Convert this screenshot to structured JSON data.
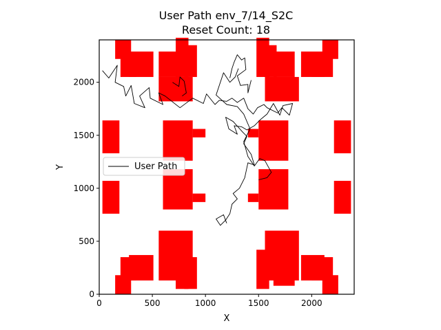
{
  "chart_data": {
    "type": "line",
    "title": "User Path env_7/14_S2C",
    "subtitle": "Reset Count: 18",
    "xlabel": "X",
    "ylabel": "Y",
    "xlim": [
      0,
      2400
    ],
    "ylim": [
      0,
      2400
    ],
    "xticks": [
      0,
      500,
      1000,
      1500,
      2000
    ],
    "yticks": [
      0,
      500,
      1000,
      1500,
      2000
    ],
    "grid": false,
    "legend": {
      "placement": "center-left",
      "entries": [
        "User Path"
      ]
    },
    "colors": {
      "obstacle": "#ff0000",
      "path": "#000000"
    },
    "obstacles": [
      [
        150,
        2220,
        150,
        180
      ],
      [
        200,
        2050,
        150,
        220
      ],
      [
        280,
        2050,
        230,
        240
      ],
      [
        560,
        2050,
        200,
        240
      ],
      [
        560,
        1820,
        320,
        230
      ],
      [
        720,
        2050,
        120,
        370
      ],
      [
        800,
        2050,
        120,
        300
      ],
      [
        1480,
        2050,
        120,
        370
      ],
      [
        1550,
        2050,
        120,
        300
      ],
      [
        1560,
        1820,
        320,
        230
      ],
      [
        1640,
        2050,
        200,
        240
      ],
      [
        1900,
        2050,
        220,
        240
      ],
      [
        2100,
        2220,
        150,
        180
      ],
      [
        2000,
        2050,
        200,
        220
      ],
      [
        30,
        1330,
        160,
        310
      ],
      [
        600,
        1260,
        280,
        380
      ],
      [
        760,
        1480,
        120,
        80
      ],
      [
        880,
        1480,
        120,
        80
      ],
      [
        1400,
        1480,
        100,
        80
      ],
      [
        1500,
        1260,
        280,
        380
      ],
      [
        2210,
        1330,
        160,
        310
      ],
      [
        30,
        760,
        160,
        310
      ],
      [
        600,
        800,
        280,
        380
      ],
      [
        760,
        870,
        120,
        80
      ],
      [
        880,
        870,
        120,
        80
      ],
      [
        1400,
        870,
        100,
        80
      ],
      [
        1500,
        800,
        280,
        380
      ],
      [
        2210,
        760,
        160,
        310
      ],
      [
        560,
        130,
        320,
        470
      ],
      [
        720,
        50,
        120,
        370
      ],
      [
        800,
        50,
        120,
        300
      ],
      [
        280,
        130,
        230,
        240
      ],
      [
        200,
        130,
        150,
        220
      ],
      [
        150,
        0,
        150,
        180
      ],
      [
        1480,
        50,
        120,
        370
      ],
      [
        1560,
        130,
        320,
        470
      ],
      [
        1640,
        80,
        200,
        240
      ],
      [
        1900,
        130,
        220,
        240
      ],
      [
        2000,
        130,
        200,
        220
      ],
      [
        2100,
        0,
        150,
        180
      ]
    ],
    "series": [
      {
        "name": "User Path",
        "segments": [
          [
            [
              30,
              2110
            ],
            [
              90,
              2040
            ],
            [
              170,
              2160
            ],
            [
              150,
              2000
            ],
            [
              230,
              1960
            ],
            [
              250,
              1870
            ],
            [
              300,
              1970
            ],
            [
              330,
              1800
            ],
            [
              430,
              1760
            ],
            [
              380,
              1870
            ],
            [
              470,
              1950
            ],
            [
              480,
              1850
            ],
            [
              600,
              1790
            ],
            [
              560,
              1900
            ],
            [
              620,
              1870
            ],
            [
              760,
              1760
            ],
            [
              880,
              1850
            ],
            [
              980,
              1800
            ],
            [
              1010,
              1890
            ],
            [
              1090,
              1790
            ],
            [
              1130,
              1830
            ],
            [
              1200,
              1820
            ],
            [
              1250,
              1850
            ],
            [
              1300,
              1810
            ],
            [
              1360,
              1850
            ],
            [
              1400,
              1750
            ],
            [
              1450,
              1700
            ],
            [
              1490,
              1760
            ],
            [
              1550,
              1790
            ],
            [
              1580,
              1760
            ],
            [
              1680,
              1710
            ],
            [
              1720,
              1760
            ],
            [
              1790,
              1690
            ],
            [
              1820,
              1800
            ],
            [
              1730,
              1780
            ],
            [
              1700,
              1690
            ],
            [
              1640,
              1800
            ],
            [
              1580,
              1700
            ],
            [
              1520,
              1650
            ],
            [
              1460,
              1590
            ],
            [
              1390,
              1550
            ],
            [
              1340,
              1580
            ],
            [
              1270,
              1590
            ],
            [
              1300,
              1510
            ],
            [
              1220,
              1560
            ],
            [
              1190,
              1670
            ],
            [
              1260,
              1630
            ],
            [
              1350,
              1530
            ],
            [
              1390,
              1490
            ],
            [
              1360,
              1420
            ],
            [
              1430,
              1320
            ],
            [
              1460,
              1220
            ],
            [
              1400,
              1240
            ],
            [
              1370,
              1100
            ],
            [
              1320,
              1000
            ],
            [
              1260,
              950
            ],
            [
              1300,
              900
            ],
            [
              1250,
              850
            ],
            [
              1230,
              760
            ],
            [
              1190,
              700
            ],
            [
              1140,
              650
            ],
            [
              1100,
              710
            ],
            [
              1170,
              750
            ],
            [
              1200,
              670
            ]
          ],
          [
            [
              1310,
              2130
            ],
            [
              1280,
              2050
            ],
            [
              1230,
              2000
            ],
            [
              1170,
              2090
            ],
            [
              1100,
              1880
            ],
            [
              1200,
              1790
            ],
            [
              1300,
              1770
            ],
            [
              1360,
              1700
            ],
            [
              1420,
              1560
            ],
            [
              1360,
              1440
            ],
            [
              1400,
              1300
            ],
            [
              1460,
              1210
            ],
            [
              1510,
              1280
            ],
            [
              1560,
              1260
            ],
            [
              1620,
              1150
            ],
            [
              1580,
              1100
            ],
            [
              1500,
              1080
            ]
          ],
          [
            [
              1230,
              2040
            ],
            [
              1250,
              2130
            ],
            [
              1270,
              2190
            ],
            [
              1300,
              2260
            ],
            [
              1340,
              2210
            ],
            [
              1370,
              2230
            ],
            [
              1380,
              2120
            ],
            [
              1300,
              2060
            ],
            [
              1330,
              1970
            ],
            [
              1400,
              1980
            ],
            [
              1400,
              1900
            ],
            [
              1430,
              2020
            ]
          ],
          [
            [
              690,
              2000
            ],
            [
              750,
              1960
            ],
            [
              760,
              2050
            ],
            [
              800,
              2010
            ],
            [
              820,
              1900
            ],
            [
              780,
              1870
            ]
          ]
        ]
      }
    ]
  }
}
